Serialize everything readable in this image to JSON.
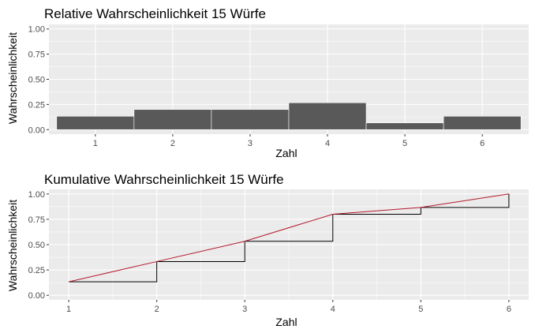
{
  "colors": {
    "panel_bg": "#ebebeb",
    "grid_major": "#ffffff",
    "tick_text": "#4d4d4d",
    "bar_fill": "#595959",
    "step_line": "#000000",
    "cum_line": "#b2182b"
  },
  "chart_data": [
    {
      "type": "bar",
      "title": "Relative Wahrscheinlichkeit 15 Würfe",
      "xlabel": "Zahl",
      "ylabel": "Wahrscheinlichkeit",
      "categories": [
        "1",
        "2",
        "3",
        "4",
        "5",
        "6"
      ],
      "values": [
        0.133,
        0.2,
        0.2,
        0.267,
        0.067,
        0.133
      ],
      "ylim": [
        0,
        1
      ],
      "yticks": [
        "0.00",
        "0.25",
        "0.50",
        "0.75",
        "1.00"
      ],
      "grid": true
    },
    {
      "type": "line",
      "title": "Kumulative Wahrscheinlichkeit 15 Würfe",
      "xlabel": "Zahl",
      "ylabel": "Wahrscheinlichkeit",
      "x": [
        1,
        2,
        3,
        4,
        5,
        6
      ],
      "xticks": [
        "1",
        "2",
        "3",
        "4",
        "5",
        "6"
      ],
      "series": [
        {
          "values": [
            0.133,
            0.333,
            0.533,
            0.8,
            0.867,
            1.0
          ]
        }
      ],
      "step_series": {
        "values": [
          0.133,
          0.333,
          0.533,
          0.8,
          0.867,
          1.0
        ]
      },
      "ylim": [
        0,
        1
      ],
      "yticks": [
        "0.00",
        "0.25",
        "0.50",
        "0.75",
        "1.00"
      ],
      "grid": true
    }
  ]
}
